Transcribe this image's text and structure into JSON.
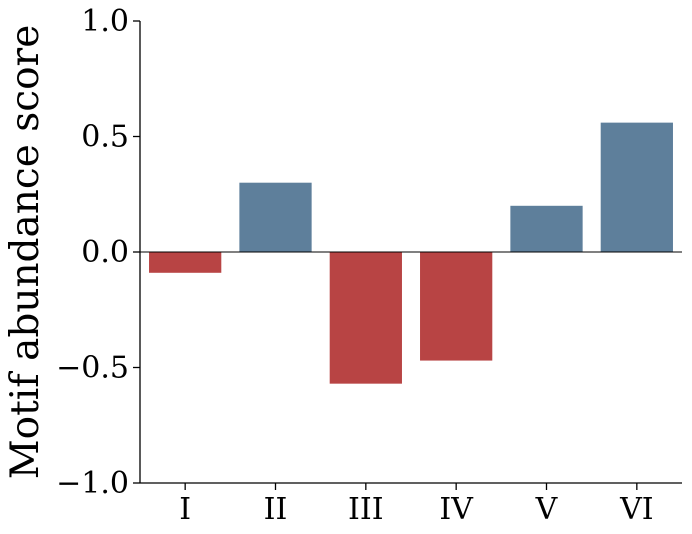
{
  "chart_data": {
    "type": "bar",
    "categories": [
      "I",
      "II",
      "III",
      "IV",
      "V",
      "VI"
    ],
    "values": [
      -0.09,
      0.3,
      -0.57,
      -0.47,
      0.2,
      0.56
    ],
    "title": "",
    "xlabel": "",
    "ylabel": "Motif abundance score",
    "ylim": [
      -1.0,
      1.0
    ],
    "yticks": [
      -1.0,
      -0.5,
      0.0,
      0.5,
      1.0
    ],
    "ytick_labels": [
      "−1.0",
      "−0.5",
      "0.0",
      "0.5",
      "1.0"
    ],
    "grid": false,
    "legend": "none",
    "colors": {
      "positive": "#5e7f9b",
      "negative": "#b84444",
      "axis": "#000000"
    }
  }
}
